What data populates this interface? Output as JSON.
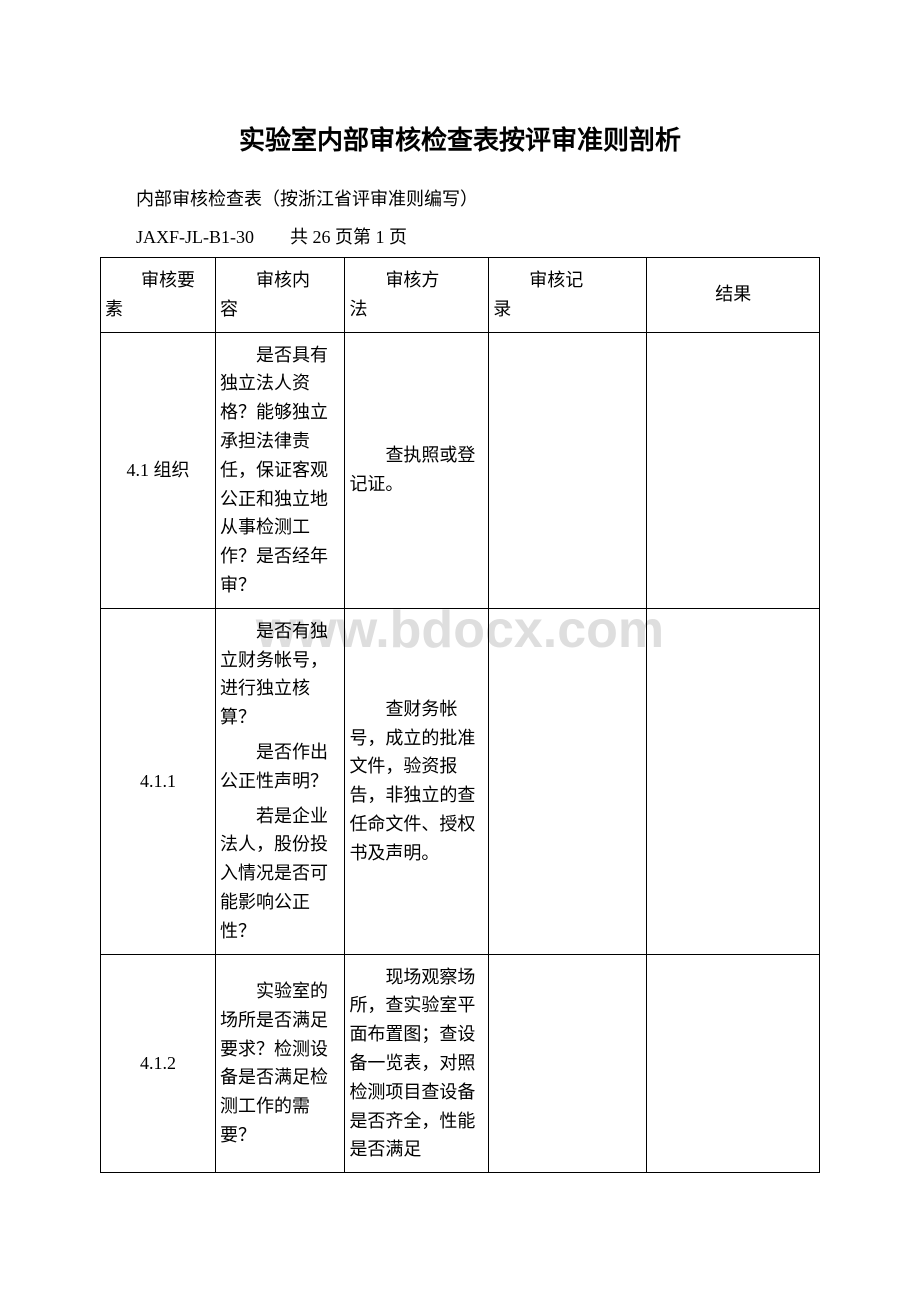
{
  "title": "实验室内部审核检查表按评审准则剖析",
  "subtitle": "内部审核检查表（按浙江省评审准则编写）",
  "docno": "JAXF-JL-B1-30　　共 26 页第 1 页",
  "watermark": "www.bdocx.com",
  "background_color": "#ffffff",
  "text_color": "#000000",
  "watermark_color": "#dedede",
  "border_color": "#000000",
  "title_fontsize": 26,
  "body_fontsize": 18,
  "table": {
    "columns": [
      {
        "line1": "审核要",
        "line2": "素",
        "width_pct": 16
      },
      {
        "line1": "审核内",
        "line2": "容",
        "width_pct": 18
      },
      {
        "line1": "审核方",
        "line2": "法",
        "width_pct": 20
      },
      {
        "line1": "审核记",
        "line2": "录",
        "width_pct": 22
      },
      {
        "line1": "结果",
        "line2": "",
        "width_pct": 24,
        "center": true
      }
    ],
    "rows": [
      {
        "element": "4.1 组织",
        "content_paragraphs": [
          "是否具有独立法人资格？能够独立承担法律责任，保证客观公正和独立地从事检测工作？是否经年审？"
        ],
        "method_paragraphs": [
          "查执照或登记证。"
        ],
        "record": "",
        "result": ""
      },
      {
        "element": "4.1.1",
        "content_paragraphs": [
          "是否有独立财务帐号，进行独立核算？",
          "是否作出公正性声明？",
          "若是企业法人，股份投入情况是否可能影响公正性？"
        ],
        "method_paragraphs": [
          "查财务帐号，成立的批准文件，验资报告，非独立的查任命文件、授权书及声明。"
        ],
        "record": "",
        "result": ""
      },
      {
        "element": "4.1.2",
        "content_paragraphs": [
          "实验室的场所是否满足要求？检测设备是否满足检测工作的需要？"
        ],
        "method_paragraphs": [
          "现场观察场所，查实验室平面布置图；查设备一览表，对照检测项目查设备是否齐全，性能是否满足"
        ],
        "record": "",
        "result": ""
      }
    ]
  }
}
